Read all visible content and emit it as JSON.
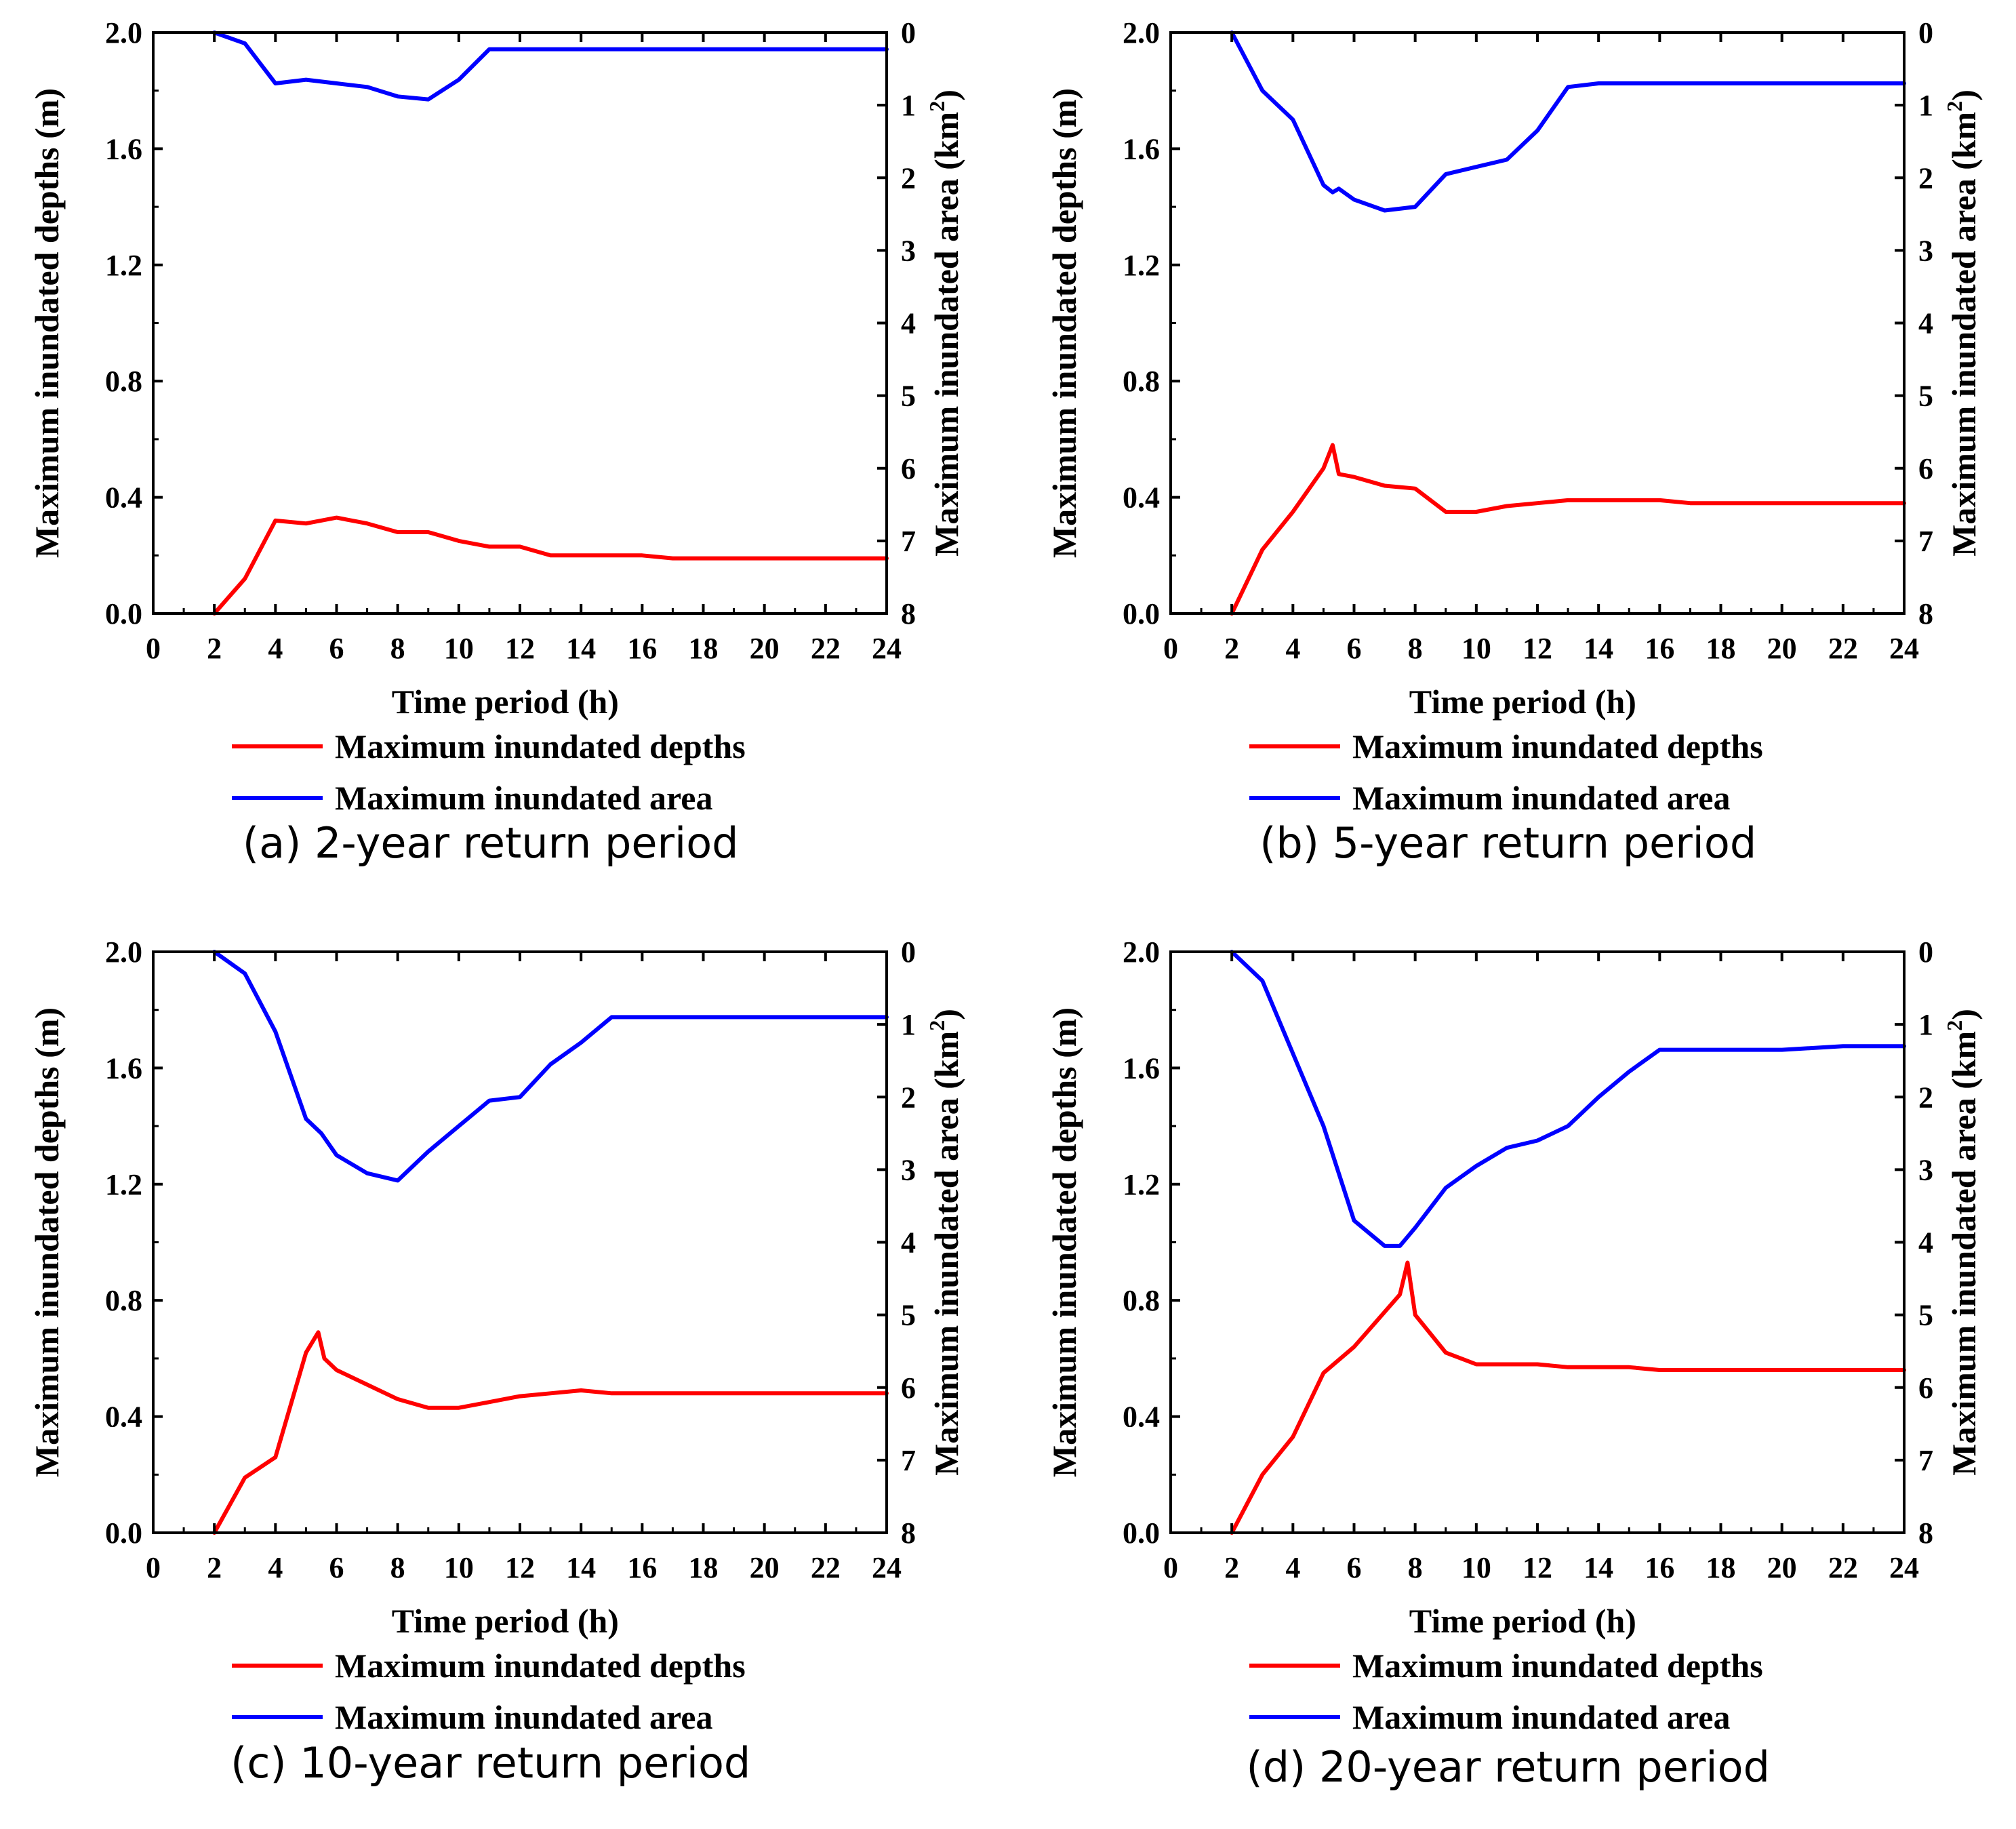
{
  "chart_data": [
    {
      "type": "line",
      "caption": "(a) 2-year return period",
      "xlabel": "Time period (h)",
      "ylabel_left": "Maximum inundated depths (m)",
      "ylabel_right_main": "Maximum inundated area (km",
      "ylabel_right_sup": "2",
      "ylabel_right_close": ")",
      "xlim": [
        0,
        24
      ],
      "ylim_left": [
        0,
        2.0
      ],
      "ylim_right": [
        0,
        8
      ],
      "right_axis_inverted": true,
      "x_ticks": [
        "0",
        "2",
        "4",
        "6",
        "8",
        "10",
        "12",
        "14",
        "16",
        "18",
        "20",
        "22",
        "24"
      ],
      "y_left_ticks": [
        "0.0",
        "0.4",
        "0.8",
        "1.2",
        "1.6",
        "2.0"
      ],
      "y_right_ticks": [
        "0",
        "1",
        "2",
        "3",
        "4",
        "5",
        "6",
        "7",
        "8"
      ],
      "legend": [
        "Maximum inundated depths",
        "Maximum inundated area"
      ],
      "series": [
        {
          "name": "Maximum inundated depths",
          "axis": "left",
          "color": "#ff0000",
          "x": [
            2,
            3,
            4,
            5,
            6,
            7,
            8,
            9,
            10,
            11,
            12,
            13,
            14,
            15,
            16,
            17,
            18,
            20,
            22,
            24
          ],
          "y": [
            0.0,
            0.12,
            0.32,
            0.31,
            0.33,
            0.31,
            0.28,
            0.28,
            0.25,
            0.23,
            0.23,
            0.2,
            0.2,
            0.2,
            0.2,
            0.19,
            0.19,
            0.19,
            0.19,
            0.19
          ]
        },
        {
          "name": "Maximum inundated area",
          "axis": "right",
          "color": "#0000ff",
          "x": [
            2,
            3,
            4,
            5,
            6,
            7,
            8,
            9,
            10,
            11,
            12,
            14,
            16,
            18,
            20,
            22,
            24
          ],
          "y": [
            0.0,
            0.15,
            0.7,
            0.65,
            0.7,
            0.75,
            0.88,
            0.92,
            0.65,
            0.23,
            0.23,
            0.23,
            0.23,
            0.23,
            0.23,
            0.23,
            0.23
          ]
        }
      ]
    },
    {
      "type": "line",
      "caption": "(b) 5-year return period",
      "xlabel": "Time period (h)",
      "ylabel_left": "Maximum inundated depths (m)",
      "ylabel_right_main": "Maximum inundated area (km",
      "ylabel_right_sup": "2",
      "ylabel_right_close": ")",
      "xlim": [
        0,
        24
      ],
      "ylim_left": [
        0,
        2.0
      ],
      "ylim_right": [
        0,
        8
      ],
      "right_axis_inverted": true,
      "x_ticks": [
        "0",
        "2",
        "4",
        "6",
        "8",
        "10",
        "12",
        "14",
        "16",
        "18",
        "20",
        "22",
        "24"
      ],
      "y_left_ticks": [
        "0.0",
        "0.4",
        "0.8",
        "1.2",
        "1.6",
        "2.0"
      ],
      "y_right_ticks": [
        "0",
        "1",
        "2",
        "3",
        "4",
        "5",
        "6",
        "7",
        "8"
      ],
      "legend": [
        "Maximum inundated depths",
        "Maximum inundated area"
      ],
      "series": [
        {
          "name": "Maximum inundated depths",
          "axis": "left",
          "color": "#ff0000",
          "x": [
            2,
            3,
            4,
            5,
            5.3,
            5.5,
            6,
            7,
            8,
            9,
            10,
            11,
            12,
            13,
            14,
            15,
            16,
            17,
            18,
            20,
            22,
            24
          ],
          "y": [
            0.0,
            0.22,
            0.35,
            0.5,
            0.58,
            0.48,
            0.47,
            0.44,
            0.43,
            0.35,
            0.35,
            0.37,
            0.38,
            0.39,
            0.39,
            0.39,
            0.39,
            0.38,
            0.38,
            0.38,
            0.38,
            0.38
          ]
        },
        {
          "name": "Maximum inundated area",
          "axis": "right",
          "color": "#0000ff",
          "x": [
            2,
            3,
            4,
            5,
            5.3,
            5.5,
            6,
            7,
            8,
            9,
            10,
            11,
            12,
            13,
            14,
            16,
            18,
            20,
            22,
            24
          ],
          "y": [
            0.0,
            0.8,
            1.2,
            2.1,
            2.2,
            2.15,
            2.3,
            2.45,
            2.4,
            1.95,
            1.85,
            1.75,
            1.35,
            0.75,
            0.7,
            0.7,
            0.7,
            0.7,
            0.7,
            0.7
          ]
        }
      ]
    },
    {
      "type": "line",
      "caption": "(c) 10-year return period",
      "xlabel": "Time period (h)",
      "ylabel_left": "Maximum inundated depths (m)",
      "ylabel_right_main": "Maximum inundated area (km",
      "ylabel_right_sup": "2",
      "ylabel_right_close": ")",
      "xlim": [
        0,
        24
      ],
      "ylim_left": [
        0,
        2.0
      ],
      "ylim_right": [
        0,
        8
      ],
      "right_axis_inverted": true,
      "x_ticks": [
        "0",
        "2",
        "4",
        "6",
        "8",
        "10",
        "12",
        "14",
        "16",
        "18",
        "20",
        "22",
        "24"
      ],
      "y_left_ticks": [
        "0.0",
        "0.4",
        "0.8",
        "1.2",
        "1.6",
        "2.0"
      ],
      "y_right_ticks": [
        "0",
        "1",
        "2",
        "3",
        "4",
        "5",
        "6",
        "7",
        "8"
      ],
      "legend": [
        "Maximum inundated depths",
        "Maximum inundated area"
      ],
      "series": [
        {
          "name": "Maximum inundated depths",
          "axis": "left",
          "color": "#ff0000",
          "x": [
            2,
            3,
            4,
            5,
            5.4,
            5.6,
            6,
            7,
            8,
            9,
            10,
            11,
            12,
            13,
            14,
            15,
            16,
            18,
            20,
            22,
            24
          ],
          "y": [
            0.0,
            0.19,
            0.26,
            0.62,
            0.69,
            0.6,
            0.56,
            0.51,
            0.46,
            0.43,
            0.43,
            0.45,
            0.47,
            0.48,
            0.49,
            0.48,
            0.48,
            0.48,
            0.48,
            0.48,
            0.48
          ]
        },
        {
          "name": "Maximum inundated area",
          "axis": "right",
          "color": "#0000ff",
          "x": [
            2,
            3,
            4,
            5,
            5.5,
            6,
            7,
            8,
            9,
            10,
            11,
            12,
            13,
            14,
            15,
            16,
            18,
            20,
            22,
            24
          ],
          "y": [
            0.0,
            0.3,
            1.1,
            2.3,
            2.5,
            2.8,
            3.05,
            3.15,
            2.75,
            2.4,
            2.05,
            2.0,
            1.55,
            1.25,
            0.9,
            0.9,
            0.9,
            0.9,
            0.9,
            0.9
          ]
        }
      ]
    },
    {
      "type": "line",
      "caption": "(d) 20-year return period",
      "xlabel": "Time period (h)",
      "ylabel_left": "Maximum inundated depths (m)",
      "ylabel_right_main": "Maximum inundated area (km",
      "ylabel_right_sup": "2",
      "ylabel_right_close": ")",
      "xlim": [
        0,
        24
      ],
      "ylim_left": [
        0,
        2.0
      ],
      "ylim_right": [
        0,
        8
      ],
      "right_axis_inverted": true,
      "x_ticks": [
        "0",
        "2",
        "4",
        "6",
        "8",
        "10",
        "12",
        "14",
        "16",
        "18",
        "20",
        "22",
        "24"
      ],
      "y_left_ticks": [
        "0.0",
        "0.4",
        "0.8",
        "1.2",
        "1.6",
        "2.0"
      ],
      "y_right_ticks": [
        "0",
        "1",
        "2",
        "3",
        "4",
        "5",
        "6",
        "7",
        "8"
      ],
      "legend": [
        "Maximum inundated depths",
        "Maximum inundated area"
      ],
      "series": [
        {
          "name": "Maximum inundated depths",
          "axis": "left",
          "color": "#ff0000",
          "x": [
            2,
            3,
            4,
            5,
            6,
            7,
            7.5,
            7.75,
            8,
            9,
            10,
            11,
            12,
            13,
            14,
            15,
            16,
            18,
            20,
            22,
            24
          ],
          "y": [
            0.0,
            0.2,
            0.33,
            0.55,
            0.64,
            0.76,
            0.82,
            0.93,
            0.75,
            0.62,
            0.58,
            0.58,
            0.58,
            0.57,
            0.57,
            0.57,
            0.56,
            0.56,
            0.56,
            0.56,
            0.56
          ]
        },
        {
          "name": "Maximum inundated area",
          "axis": "right",
          "color": "#0000ff",
          "x": [
            2,
            3,
            4,
            5,
            6,
            7,
            7.5,
            8,
            9,
            10,
            11,
            12,
            13,
            14,
            15,
            16,
            18,
            20,
            22,
            24
          ],
          "y": [
            0.0,
            0.4,
            1.4,
            2.4,
            3.7,
            4.05,
            4.05,
            3.8,
            3.25,
            2.95,
            2.7,
            2.6,
            2.4,
            2.0,
            1.65,
            1.35,
            1.35,
            1.35,
            1.3,
            1.3
          ]
        }
      ]
    }
  ]
}
